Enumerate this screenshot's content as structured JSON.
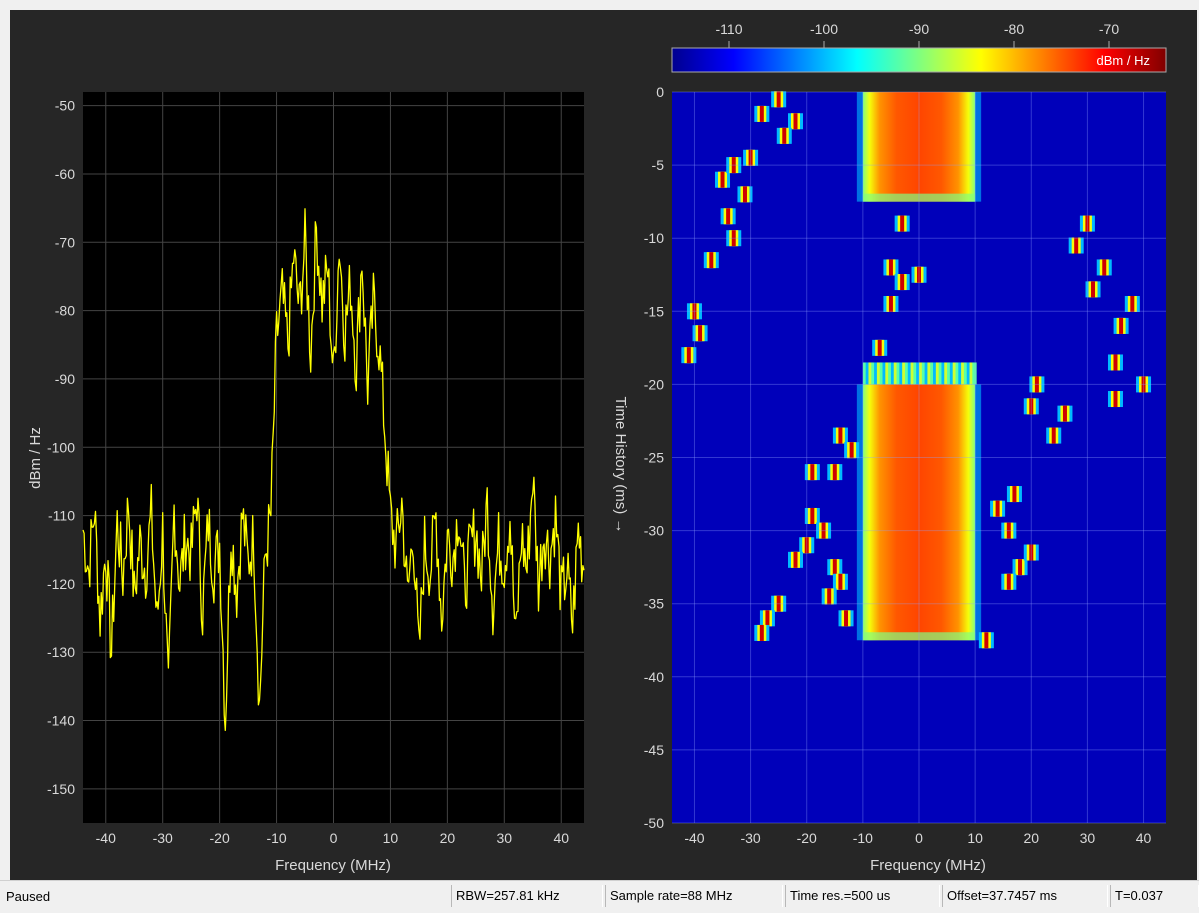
{
  "status": {
    "state": "Paused",
    "rbw": "RBW=257.81 kHz",
    "sample_rate": "Sample rate=88 MHz",
    "time_res": "Time res.=500 us",
    "offset": "Offset=37.7457 ms",
    "t": "T=0.037"
  },
  "colors": {
    "trace": "#ffff00",
    "plot_bg": "#000000",
    "figure_bg": "#262626",
    "axis_text": "#d9d9d9"
  },
  "chart_data": [
    {
      "type": "line",
      "xlabel": "Frequency (MHz)",
      "ylabel": "dBm / Hz",
      "xlim": [
        -44,
        44
      ],
      "ylim": [
        -155,
        -48
      ],
      "xticks": [
        "-40",
        "-30",
        "-20",
        "-10",
        "0",
        "10",
        "20",
        "30",
        "40"
      ],
      "yticks": [
        "-50",
        "-60",
        "-70",
        "-80",
        "-90",
        "-100",
        "-110",
        "-120",
        "-130",
        "-140",
        "-150"
      ],
      "grid": true,
      "series": [
        {
          "color": "#ffff00",
          "x": [
            -44,
            -43,
            -42,
            -41,
            -40,
            -39,
            -38,
            -37,
            -36,
            -35,
            -34,
            -33,
            -32,
            -31,
            -30,
            -29,
            -28,
            -27,
            -26,
            -25,
            -24,
            -23,
            -22,
            -21,
            -20,
            -19,
            -18,
            -17,
            -16,
            -15,
            -14,
            -13,
            -12,
            -11,
            -10,
            -9,
            -8,
            -7,
            -6,
            -5,
            -4,
            -3,
            -2,
            -1,
            0,
            1,
            2,
            3,
            4,
            5,
            6,
            7,
            8,
            9,
            10,
            11,
            12,
            13,
            14,
            15,
            16,
            17,
            18,
            19,
            20,
            21,
            22,
            23,
            24,
            25,
            26,
            27,
            28,
            29,
            30,
            31,
            32,
            33,
            34,
            35,
            36,
            37,
            38,
            39,
            40,
            41,
            42,
            43,
            44
          ],
          "y": [
            -112,
            -118,
            -109,
            -125,
            -115,
            -130,
            -111,
            -119,
            -108,
            -122,
            -114,
            -118,
            -110,
            -126,
            -112,
            -137,
            -109,
            -120,
            -113,
            -116,
            -107,
            -124,
            -111,
            -118,
            -114,
            -140,
            -112,
            -121,
            -110,
            -117,
            -113,
            -138,
            -116,
            -110,
            -84,
            -78,
            -85,
            -72,
            -80,
            -70,
            -86,
            -68,
            -79,
            -74,
            -90,
            -70,
            -83,
            -76,
            -88,
            -72,
            -91,
            -79,
            -85,
            -97,
            -110,
            -115,
            -108,
            -122,
            -112,
            -131,
            -114,
            -118,
            -110,
            -125,
            -113,
            -116,
            -109,
            -121,
            -115,
            -112,
            -119,
            -108,
            -123,
            -114,
            -117,
            -110,
            -129,
            -113,
            -118,
            -104,
            -120,
            -112,
            -116,
            -110,
            -122,
            -118,
            -126,
            -112,
            -118
          ]
        }
      ]
    },
    {
      "type": "heatmap",
      "xlabel": "Frequency (MHz)",
      "ylabel": "Time History (ms) →",
      "xlim": [
        -44,
        44
      ],
      "ylim": [
        -50,
        0
      ],
      "xticks": [
        "-40",
        "-30",
        "-20",
        "-10",
        "0",
        "10",
        "20",
        "30",
        "40"
      ],
      "yticks": [
        "0",
        "-5",
        "-10",
        "-15",
        "-20",
        "-25",
        "-30",
        "-35",
        "-40",
        "-45",
        "-50"
      ],
      "grid": true,
      "colorbar": {
        "label": "dBm / Hz",
        "ticks": [
          "-110",
          "-100",
          "-90",
          "-80",
          "-70"
        ],
        "range": [
          -116,
          -64
        ],
        "placement": "top"
      },
      "background_level": -113,
      "bursts": [
        {
          "f_min": -10,
          "f_max": 10,
          "t_start": 0,
          "t_end": -7.5,
          "level": -74
        },
        {
          "f_min": -10,
          "f_max": 10,
          "t_start": -20,
          "t_end": -37.5,
          "level": -74
        }
      ],
      "hops": [
        {
          "f": -28,
          "t": -1.5
        },
        {
          "f": -25,
          "t": -0.5
        },
        {
          "f": -22,
          "t": -2
        },
        {
          "f": -24,
          "t": -3
        },
        {
          "f": -30,
          "t": -4.5
        },
        {
          "f": -35,
          "t": -6
        },
        {
          "f": -33,
          "t": -5
        },
        {
          "f": -31,
          "t": -7
        },
        {
          "f": -34,
          "t": -8.5
        },
        {
          "f": -33,
          "t": -10
        },
        {
          "f": -37,
          "t": -11.5
        },
        {
          "f": -40,
          "t": -15
        },
        {
          "f": -39,
          "t": -16.5
        },
        {
          "f": -41,
          "t": -18
        },
        {
          "f": -5,
          "t": -12
        },
        {
          "f": -3,
          "t": -13
        },
        {
          "f": -5,
          "t": -14.5
        },
        {
          "f": 0,
          "t": -12.5
        },
        {
          "f": -3,
          "t": -9
        },
        {
          "f": -7,
          "t": -17.5
        },
        {
          "f": 30,
          "t": -9
        },
        {
          "f": 28,
          "t": -10.5
        },
        {
          "f": 33,
          "t": -12
        },
        {
          "f": 31,
          "t": -13.5
        },
        {
          "f": 38,
          "t": -14.5
        },
        {
          "f": 36,
          "t": -16
        },
        {
          "f": 35,
          "t": -18.5
        },
        {
          "f": 40,
          "t": -20
        },
        {
          "f": 35,
          "t": -21
        },
        {
          "f": 21,
          "t": -20
        },
        {
          "f": 20,
          "t": -21.5
        },
        {
          "f": 26,
          "t": -22
        },
        {
          "f": 24,
          "t": -23.5
        },
        {
          "f": -14,
          "t": -23.5
        },
        {
          "f": -12,
          "t": -24.5
        },
        {
          "f": -15,
          "t": -26
        },
        {
          "f": -19,
          "t": -26
        },
        {
          "f": -19,
          "t": -29
        },
        {
          "f": -17,
          "t": -30
        },
        {
          "f": -20,
          "t": -31
        },
        {
          "f": -22,
          "t": -32
        },
        {
          "f": -15,
          "t": -32.5
        },
        {
          "f": -14,
          "t": -33.5
        },
        {
          "f": -16,
          "t": -34.5
        },
        {
          "f": -13,
          "t": -36
        },
        {
          "f": -25,
          "t": -35
        },
        {
          "f": -27,
          "t": -36
        },
        {
          "f": -28,
          "t": -37
        },
        {
          "f": 14,
          "t": -28.5
        },
        {
          "f": 17,
          "t": -27.5
        },
        {
          "f": 16,
          "t": -30
        },
        {
          "f": 18,
          "t": -32.5
        },
        {
          "f": 20,
          "t": -31.5
        },
        {
          "f": 16,
          "t": -33.5
        },
        {
          "f": 12,
          "t": -37.5
        }
      ]
    }
  ]
}
